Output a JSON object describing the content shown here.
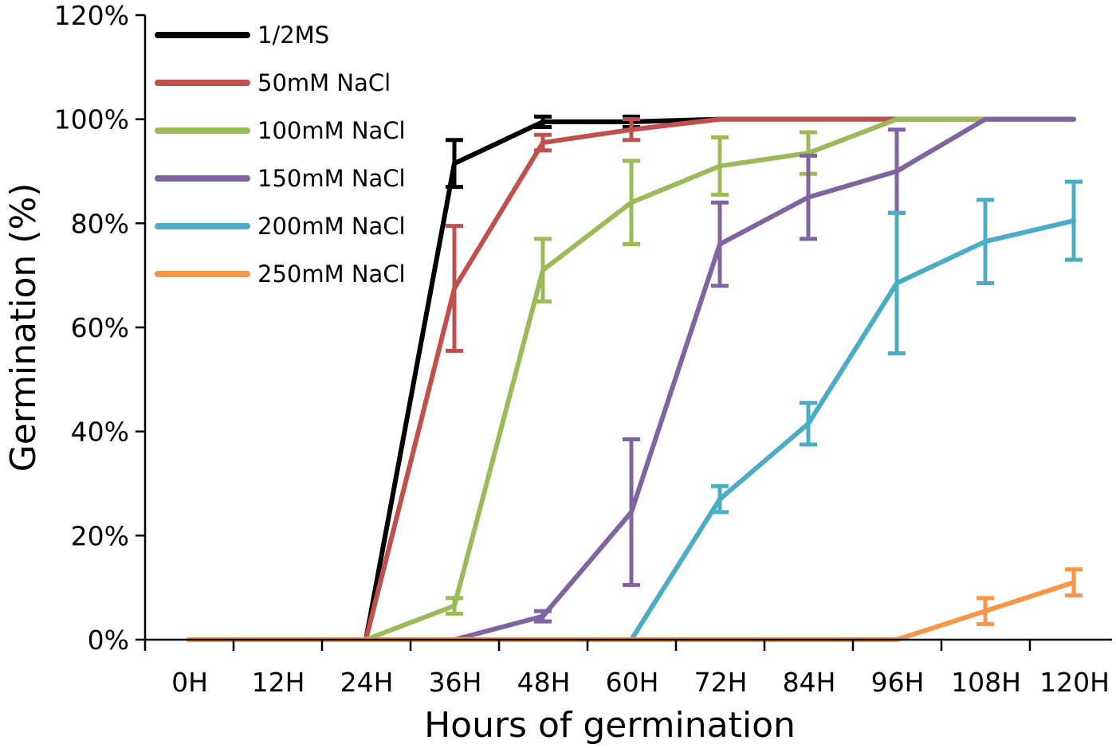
{
  "chart_data": {
    "type": "line",
    "title": "",
    "xlabel": "Hours of germination",
    "ylabel": "Germination (%)",
    "categories": [
      "0H",
      "12H",
      "24H",
      "36H",
      "48H",
      "60H",
      "72H",
      "84H",
      "96H",
      "108H",
      "120H"
    ],
    "y_tick_labels": [
      "0%",
      "20%",
      "40%",
      "60%",
      "80%",
      "100%",
      "120%"
    ],
    "ylim": [
      0,
      120
    ],
    "grid": false,
    "legend_position": "top-left",
    "series": [
      {
        "name": "1/2MS",
        "color": "#000000",
        "values": [
          0,
          0,
          0,
          91.5,
          99.5,
          99.5,
          100,
          100,
          100,
          100,
          100
        ],
        "errors": [
          0,
          0,
          0,
          4.5,
          1,
          1,
          0,
          0,
          0,
          0,
          0
        ]
      },
      {
        "name": "50mM NaCl",
        "color": "#c0504d",
        "values": [
          0,
          0,
          0,
          67.5,
          95.5,
          98,
          100,
          100,
          100,
          100,
          100
        ],
        "errors": [
          0,
          0,
          0,
          12,
          1.5,
          2,
          0,
          0,
          0,
          0,
          0
        ]
      },
      {
        "name": "100mM NaCl",
        "color": "#9bbb59",
        "values": [
          0,
          0,
          0,
          6.5,
          71,
          84,
          91,
          93.5,
          100,
          100,
          100
        ],
        "errors": [
          0,
          0,
          0,
          1.5,
          6,
          8,
          5.5,
          4,
          0,
          0,
          0
        ]
      },
      {
        "name": "150mM NaCl",
        "color": "#8064a2",
        "values": [
          0,
          0,
          0,
          0,
          4.5,
          24.5,
          76,
          85,
          90,
          100,
          100
        ],
        "errors": [
          0,
          0,
          0,
          0,
          1,
          14,
          8,
          8,
          8,
          0,
          0
        ]
      },
      {
        "name": "200mM NaCl",
        "color": "#4bacc6",
        "values": [
          0,
          0,
          0,
          0,
          0,
          0,
          27,
          41.5,
          68.5,
          76.5,
          80.5
        ],
        "errors": [
          0,
          0,
          0,
          0,
          0,
          0,
          2.5,
          4,
          13.5,
          8,
          7.5
        ]
      },
      {
        "name": "250mM NaCl",
        "color": "#f79646",
        "values": [
          0,
          0,
          0,
          0,
          0,
          0,
          0,
          0,
          0,
          5.5,
          11
        ],
        "errors": [
          0,
          0,
          0,
          0,
          0,
          0,
          0,
          0,
          0,
          2.5,
          2.5
        ]
      }
    ]
  }
}
